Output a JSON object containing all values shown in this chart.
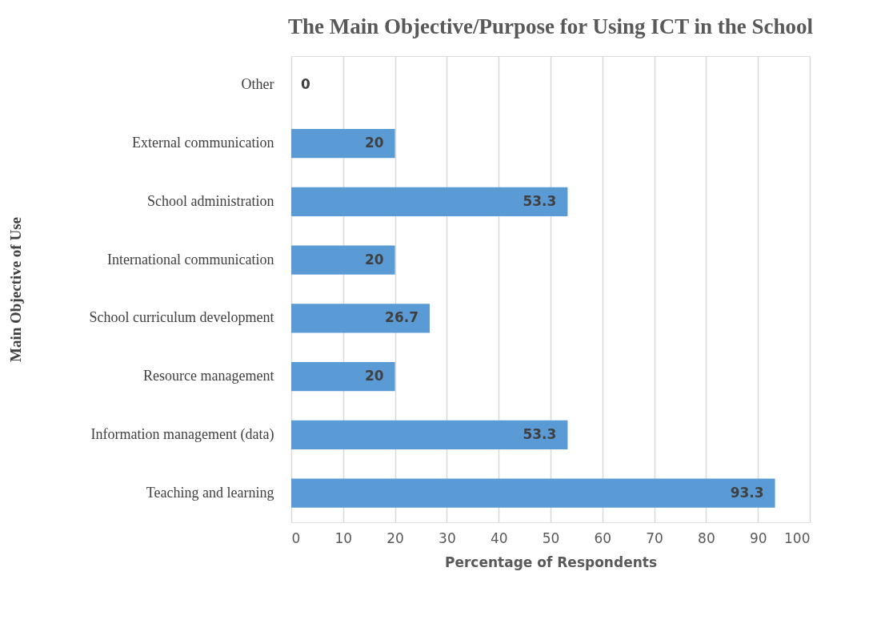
{
  "chart_data": {
    "type": "bar",
    "orientation": "horizontal",
    "title": "The Main Objective/Purpose for Using ICT in the School",
    "ylabel": "Main Objective of Use",
    "xlabel": "Percentage of Respondents",
    "categories": [
      "Other",
      "External communication",
      "School administration",
      "International communication",
      "School curriculum development",
      "Resource management",
      "Information management (data)",
      "Teaching and learning"
    ],
    "values": [
      0,
      20,
      53.3,
      20,
      26.7,
      20,
      53.3,
      93.3
    ],
    "color": "#5b9bd5",
    "xlim": [
      0,
      100
    ],
    "xticks": [
      0,
      10,
      20,
      30,
      40,
      50,
      60,
      70,
      80,
      90,
      100
    ],
    "grid": "x",
    "data_labels": true
  }
}
